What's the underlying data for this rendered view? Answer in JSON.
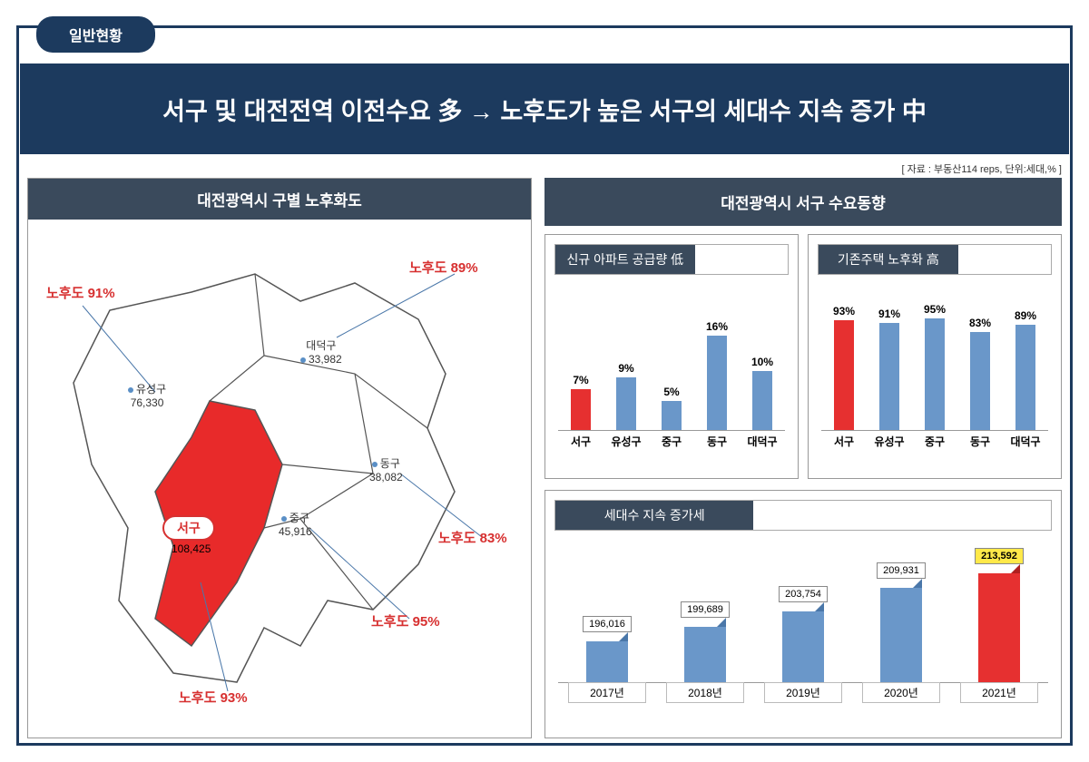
{
  "colors": {
    "navy": "#1c3a5e",
    "header": "#3a4a5c",
    "bar_blue": "#6a97c9",
    "bar_red": "#e63030",
    "text_red": "#d73030",
    "highlight_yellow": "#ffe949"
  },
  "top_tab": "일반현황",
  "title": "서구 및 대전전역 이전수요 多 → 노후도가 높은 서구의 세대수 지속 증가 中",
  "source": "[ 자료 : 부동산114 reps, 단위:세대,% ]",
  "left_panel": {
    "title": "대전광역시 구별 노후화도",
    "seogu_badge": "서구",
    "districts": {
      "yuseong": {
        "name": "유성구",
        "pop": "76,330",
        "aging_label": "노후도 91%"
      },
      "daedeok": {
        "name": "대덕구",
        "pop": "33,982",
        "aging_label": "노후도 89%"
      },
      "dong": {
        "name": "동구",
        "pop": "38,082",
        "aging_label": "노후도 83%"
      },
      "jung": {
        "name": "중구",
        "pop": "45,916",
        "aging_label": "노후도 95%"
      },
      "seo": {
        "name": "서구",
        "pop": "108,425",
        "aging_label": "노후도 93%"
      }
    }
  },
  "right_header": "대전광역시 서구 수요동향",
  "chart_supply": {
    "title": "신규 아파트 공급량 低",
    "ymax": 20,
    "bars": [
      {
        "label": "서구",
        "value": 7,
        "display": "7%",
        "color": "#e63030"
      },
      {
        "label": "유성구",
        "value": 9,
        "display": "9%",
        "color": "#6a97c9"
      },
      {
        "label": "중구",
        "value": 5,
        "display": "5%",
        "color": "#6a97c9"
      },
      {
        "label": "동구",
        "value": 16,
        "display": "16%",
        "color": "#6a97c9"
      },
      {
        "label": "대덕구",
        "value": 10,
        "display": "10%",
        "color": "#6a97c9"
      }
    ]
  },
  "chart_aging": {
    "title": "기존주택 노후화 高",
    "ymax": 100,
    "bars": [
      {
        "label": "서구",
        "value": 93,
        "display": "93%",
        "color": "#e63030"
      },
      {
        "label": "유성구",
        "value": 91,
        "display": "91%",
        "color": "#6a97c9"
      },
      {
        "label": "중구",
        "value": 95,
        "display": "95%",
        "color": "#6a97c9"
      },
      {
        "label": "동구",
        "value": 83,
        "display": "83%",
        "color": "#6a97c9"
      },
      {
        "label": "대덕구",
        "value": 89,
        "display": "89%",
        "color": "#6a97c9"
      }
    ]
  },
  "chart_growth": {
    "title": "세대수 지속 증가세",
    "ymin": 190000,
    "ymax": 216000,
    "bars": [
      {
        "year": "2017년",
        "value": 196016,
        "display": "196,016",
        "highlight": false
      },
      {
        "year": "2018년",
        "value": 199689,
        "display": "199,689",
        "highlight": false
      },
      {
        "year": "2019년",
        "value": 203754,
        "display": "203,754",
        "highlight": false
      },
      {
        "year": "2020년",
        "value": 209931,
        "display": "209,931",
        "highlight": false
      },
      {
        "year": "2021년",
        "value": 213592,
        "display": "213,592",
        "highlight": true
      }
    ]
  }
}
